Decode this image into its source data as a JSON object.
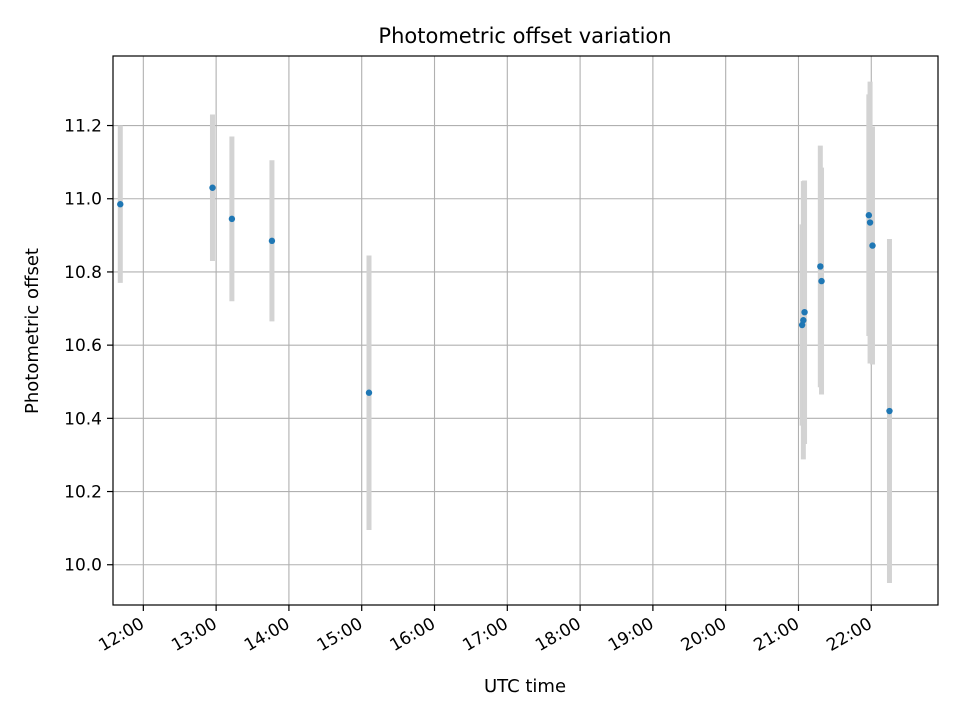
{
  "chart_data": {
    "type": "scatter",
    "title": "Photometric offset variation",
    "xlabel": "UTC time",
    "ylabel": "Photometric offset",
    "x_axis_kind": "time",
    "xlim": [
      "11:35",
      "22:55"
    ],
    "ylim": [
      9.89,
      11.39
    ],
    "x_ticks": [
      "12:00",
      "13:00",
      "14:00",
      "15:00",
      "16:00",
      "17:00",
      "18:00",
      "19:00",
      "20:00",
      "21:00",
      "22:00"
    ],
    "y_ticks": [
      "10.0",
      "10.2",
      "10.4",
      "10.6",
      "10.8",
      "11.0",
      "11.2"
    ],
    "grid": true,
    "legend": "none",
    "point_color": "#1f77b4",
    "errorbar_color": "#d3d3d3",
    "series": [
      {
        "points": [
          {
            "x": "11:41",
            "y": 10.985,
            "yerr": 0.215
          },
          {
            "x": "12:57",
            "y": 11.03,
            "yerr": 0.2
          },
          {
            "x": "13:13",
            "y": 10.945,
            "yerr": 0.225
          },
          {
            "x": "13:46",
            "y": 10.885,
            "yerr": 0.22
          },
          {
            "x": "15:06",
            "y": 10.47,
            "yerr": 0.375
          },
          {
            "x": "21:03",
            "y": 10.655,
            "yerr": 0.275
          },
          {
            "x": "21:04",
            "y": 10.668,
            "yerr": 0.38
          },
          {
            "x": "21:05",
            "y": 10.69,
            "yerr": 0.36
          },
          {
            "x": "21:18",
            "y": 10.815,
            "yerr": 0.33
          },
          {
            "x": "21:19",
            "y": 10.775,
            "yerr": 0.31
          },
          {
            "x": "21:58",
            "y": 10.955,
            "yerr": 0.33
          },
          {
            "x": "21:59",
            "y": 10.935,
            "yerr": 0.385
          },
          {
            "x": "22:01",
            "y": 10.872,
            "yerr": 0.325
          },
          {
            "x": "22:15",
            "y": 10.42,
            "yerr": 0.47
          }
        ]
      }
    ]
  }
}
